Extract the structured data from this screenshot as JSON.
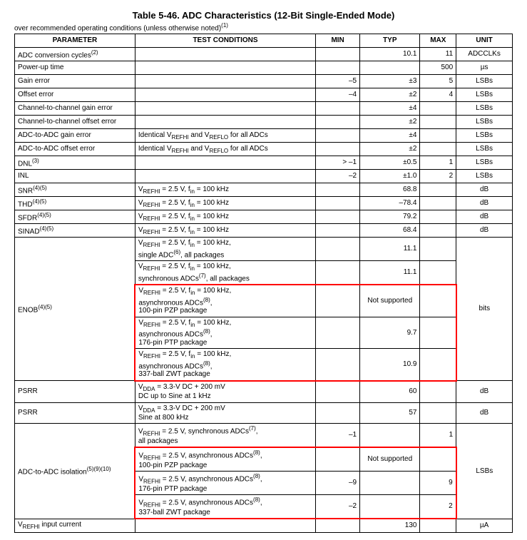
{
  "title": "Table 5-46. ADC Characteristics (12-Bit Single-Ended Mode)",
  "subtitle_pre": "over recommended operating conditions (unless otherwise noted)",
  "subtitle_sup": "(1)",
  "headers": {
    "parameter": "PARAMETER",
    "conditions": "TEST CONDITIONS",
    "min": "MIN",
    "typ": "TYP",
    "max": "MAX",
    "unit": "UNIT"
  },
  "rows": {
    "r0": {
      "param": "ADC conversion cycles",
      "sup": "(2)",
      "cond": "",
      "min": "",
      "typ": "10.1",
      "max": "11",
      "unit": "ADCCLKs"
    },
    "r1": {
      "param": "Power-up time",
      "cond": "",
      "min": "",
      "typ": "",
      "max": "500",
      "unit": "µs"
    },
    "r2": {
      "param": "Gain error",
      "cond": "",
      "min": "–5",
      "typ": "±3",
      "max": "5",
      "unit": "LSBs"
    },
    "r3": {
      "param": "Offset error",
      "cond": "",
      "min": "–4",
      "typ": "±2",
      "max": "4",
      "unit": "LSBs"
    },
    "r4": {
      "param": "Channel-to-channel gain error",
      "cond": "",
      "min": "",
      "typ": "±4",
      "max": "",
      "unit": "LSBs"
    },
    "r5": {
      "param": "Channel-to-channel offset error",
      "cond": "",
      "min": "",
      "typ": "±2",
      "max": "",
      "unit": "LSBs"
    },
    "r6": {
      "param": "ADC-to-ADC gain error",
      "cond": "Identical V",
      "cond2": " and V",
      "cond3": " for all ADCs",
      "min": "",
      "typ": "±4",
      "max": "",
      "unit": "LSBs"
    },
    "r7": {
      "param": "ADC-to-ADC offset error",
      "cond": "Identical V",
      "cond2": " and V",
      "cond3": " for all ADCs",
      "min": "",
      "typ": "±2",
      "max": "",
      "unit": "LSBs"
    },
    "r8": {
      "param": "DNL",
      "sup": "(3)",
      "cond": "",
      "min": "> –1",
      "typ": "±0.5",
      "max": "1",
      "unit": "LSBs"
    },
    "r9": {
      "param": "INL",
      "cond": "",
      "min": "–2",
      "typ": "±1.0",
      "max": "2",
      "unit": "LSBs"
    },
    "r10": {
      "param": "SNR",
      "sup": "(4)(5)",
      "cond_pre": "V",
      "cond_sub": "REFHI",
      "cond_mid": " = 2.5 V, f",
      "cond_sub2": "in",
      "cond_post": " = 100 kHz",
      "typ": "68.8",
      "unit": "dB"
    },
    "r11": {
      "param": "THD",
      "sup": "(4)(5)",
      "typ": "–78.4",
      "unit": "dB"
    },
    "r12": {
      "param": "SFDR",
      "sup": "(4)(5)",
      "typ": "79.2",
      "unit": "dB"
    },
    "r13": {
      "param": "SINAD",
      "sup": "(4)(5)",
      "typ": "68.4",
      "unit": "dB"
    },
    "enob_param": "ENOB",
    "enob_sup": "(4)(5)",
    "enob_unit": "bits",
    "e1": {
      "l1a": "V",
      "l1b": " = 2.5 V, f",
      "l1c": " = 100 kHz,",
      "l2": "single ADC",
      "l2sup": "(6)",
      "l2b": ", all packages",
      "typ": "11.1"
    },
    "e2": {
      "l1a": "V",
      "l1b": " = 2.5 V, f",
      "l1c": " = 100 kHz,",
      "l2": "synchronous ADCs",
      "l2sup": "(7)",
      "l2b": ", all packages",
      "typ": "11.1"
    },
    "e3": {
      "l1a": "V",
      "l1b": " = 2.5 V, f",
      "l1c": " = 100 kHz,",
      "l2": "asynchronous ADCs",
      "l2sup": "(8)",
      "l2b": ",",
      "l3": "100-pin PZP package",
      "typ": "Not supported"
    },
    "e4": {
      "l1a": "V",
      "l1b": " = 2.5 V, f",
      "l1c": " = 100 kHz,",
      "l2": "asynchronous ADCs",
      "l2sup": "(8)",
      "l2b": ",",
      "l3": "176-pin PTP package",
      "typ": "9.7"
    },
    "e5": {
      "l1a": "V",
      "l1b": " = 2.5 V, f",
      "l1c": " = 100 kHz,",
      "l2": "asynchronous ADCs",
      "l2sup": "(8)",
      "l2b": ",",
      "l3": "337-ball ZWT package",
      "typ": "10.9"
    },
    "p1": {
      "param": "PSRR",
      "l1a": "V",
      "l1sub": "DDA",
      "l1b": " = 3.3-V DC + 200 mV",
      "l2": "DC up to Sine at 1 kHz",
      "typ": "60",
      "unit": "dB"
    },
    "p2": {
      "param": "PSRR",
      "l1a": "V",
      "l1sub": "DDA",
      "l1b": " = 3.3-V DC + 200 mV",
      "l2": "Sine at 800 kHz",
      "typ": "57",
      "unit": "dB"
    },
    "iso_param": "ADC-to-ADC isolation",
    "iso_sup": "(5)(9)(10)",
    "iso_unit": "LSBs",
    "i1": {
      "l1a": "V",
      "l1b": " = 2.5 V, synchronous ADCs",
      "l1sup": "(7)",
      "l1c": ",",
      "l2": "all packages",
      "min": "–1",
      "max": "1"
    },
    "i2": {
      "l1a": "V",
      "l1b": " = 2.5 V, asynchronous ADCs",
      "l1sup": "(8)",
      "l1c": ",",
      "l2": "100-pin PZP package",
      "typ": "Not supported"
    },
    "i3": {
      "l1a": "V",
      "l1b": " = 2.5 V, asynchronous ADCs",
      "l1sup": "(8)",
      "l1c": ",",
      "l2": "176-pin PTP package",
      "min": "–9",
      "max": "9"
    },
    "i4": {
      "l1a": "V",
      "l1b": " = 2.5 V, asynchronous ADCs",
      "l1sup": "(8)",
      "l1c": ",",
      "l2": "337-ball ZWT package",
      "min": "–2",
      "max": "2"
    },
    "last": {
      "param": "V",
      "sub": "REFHI",
      "param2": " input current",
      "typ": "130",
      "unit": "µA"
    }
  },
  "sub": {
    "refhi": "REFHI",
    "reflo": "REFLO",
    "in": "in"
  }
}
